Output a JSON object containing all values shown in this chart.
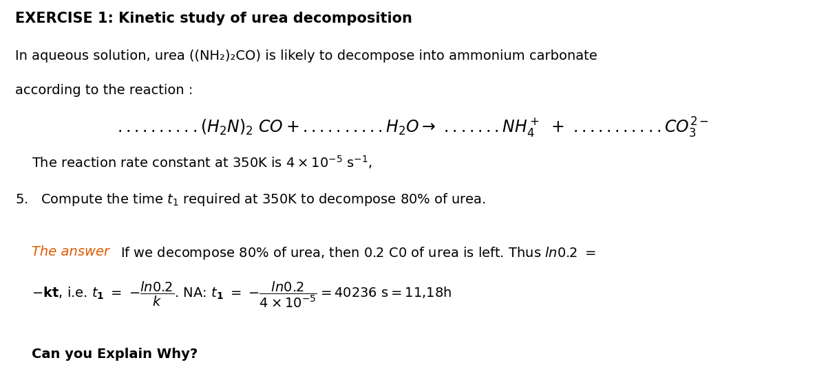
{
  "title_bold": "EXERCISE 1: Kinetic study of urea decomposition",
  "intro_line1": "In aqueous solution, urea ((NH₂)₂CO) is likely to decompose into ammonium carbonate",
  "intro_line2": "according to the reaction :",
  "answer_color": "#e05a00",
  "text_color": "#000000",
  "bg_color": "#ffffff",
  "fontsize_title": 15,
  "fontsize_body": 14,
  "fontsize_math": 16,
  "fontsize_small": 12
}
